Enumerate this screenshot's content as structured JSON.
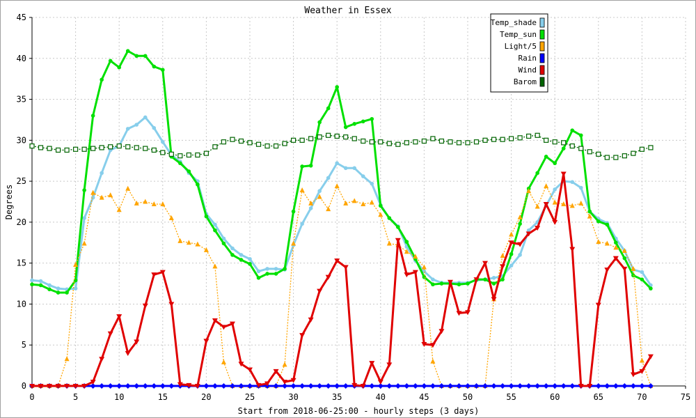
{
  "chart_data": {
    "type": "line",
    "title": "Weather in Essex",
    "xlabel": "Start from 2018-06-25:00 - hourly steps (3 days)",
    "ylabel": "Degrees",
    "xlim": [
      0,
      75
    ],
    "ylim": [
      0,
      45
    ],
    "x_ticks": [
      0,
      5,
      10,
      15,
      20,
      25,
      30,
      35,
      40,
      45,
      50,
      55,
      60,
      65,
      70,
      75
    ],
    "y_ticks": [
      0,
      5,
      10,
      15,
      20,
      25,
      30,
      35,
      40,
      45
    ],
    "grid": true,
    "legend_position": "top-right",
    "x": [
      0,
      1,
      2,
      3,
      4,
      5,
      6,
      7,
      8,
      9,
      10,
      11,
      12,
      13,
      14,
      15,
      16,
      17,
      18,
      19,
      20,
      21,
      22,
      23,
      24,
      25,
      26,
      27,
      28,
      29,
      30,
      31,
      32,
      33,
      34,
      35,
      36,
      37,
      38,
      39,
      40,
      41,
      42,
      43,
      44,
      45,
      46,
      47,
      48,
      49,
      50,
      51,
      52,
      53,
      54,
      55,
      56,
      57,
      58,
      59,
      60,
      61,
      62,
      63,
      64,
      65,
      66,
      67,
      68,
      69,
      70,
      71
    ],
    "series": [
      {
        "name": "Temp_shade",
        "color": "#87ceeb",
        "marker": "circle",
        "values": [
          12.9,
          12.8,
          12.3,
          11.9,
          11.8,
          11.9,
          20.5,
          23.0,
          26.0,
          28.8,
          29.3,
          31.4,
          31.9,
          32.8,
          31.5,
          29.8,
          28.2,
          27.4,
          26.0,
          25.0,
          21.0,
          19.7,
          18.0,
          16.8,
          16.0,
          15.5,
          14.0,
          14.3,
          14.3,
          14.2,
          17.2,
          19.8,
          21.7,
          23.8,
          25.4,
          27.2,
          26.6,
          26.6,
          25.6,
          24.7,
          22.1,
          20.5,
          19.5,
          17.0,
          15.3,
          14.0,
          13.0,
          12.6,
          12.6,
          12.6,
          12.6,
          12.9,
          13.0,
          13.2,
          13.4,
          14.7,
          16.0,
          19.0,
          20.0,
          22.0,
          24.0,
          25.0,
          24.9,
          24.2,
          21.3,
          20.4,
          19.9,
          18.0,
          16.5,
          14.2,
          13.9,
          12.3
        ]
      },
      {
        "name": "Temp_sun",
        "color": "#00e000",
        "marker": "circle",
        "values": [
          12.4,
          12.3,
          11.8,
          11.4,
          11.4,
          12.9,
          23.9,
          33.0,
          37.4,
          39.7,
          38.9,
          40.9,
          40.3,
          40.3,
          39.0,
          38.6,
          28.0,
          27.2,
          26.2,
          24.6,
          20.7,
          19.0,
          17.4,
          16.0,
          15.4,
          14.9,
          13.2,
          13.7,
          13.7,
          14.3,
          21.3,
          26.8,
          26.9,
          32.2,
          33.9,
          36.5,
          31.6,
          32.0,
          32.3,
          32.6,
          22.0,
          20.5,
          19.4,
          17.6,
          15.5,
          13.3,
          12.4,
          12.5,
          12.5,
          12.4,
          12.5,
          13.0,
          13.0,
          12.5,
          13.0,
          16.1,
          19.8,
          24.1,
          26.0,
          28.0,
          27.2,
          29.0,
          31.2,
          30.6,
          21.3,
          20.1,
          19.7,
          17.5,
          15.6,
          13.5,
          13.0,
          11.9
        ]
      },
      {
        "name": "Light/5",
        "color": "#ffa500",
        "marker": "triangle-up",
        "values": [
          0,
          0,
          0,
          0,
          3.3,
          14.8,
          17.4,
          23.6,
          23.0,
          23.3,
          21.5,
          24.1,
          22.3,
          22.5,
          22.2,
          22.2,
          20.5,
          17.7,
          17.5,
          17.3,
          16.6,
          14.6,
          2.9,
          0,
          0,
          0,
          0,
          0,
          0,
          2.6,
          17.4,
          23.9,
          22.3,
          23.1,
          21.6,
          24.4,
          22.3,
          22.6,
          22.2,
          22.4,
          20.9,
          17.4,
          17.2,
          16.4,
          15.8,
          14.5,
          3.0,
          0,
          0,
          0,
          0,
          0,
          0,
          10.6,
          15.9,
          18.5,
          20.6,
          23.8,
          21.9,
          24.4,
          22.4,
          22.2,
          22.0,
          22.3,
          20.7,
          17.6,
          17.4,
          16.9,
          16.5,
          14.3,
          3.1,
          0
        ]
      },
      {
        "name": "Rain",
        "color": "#0000ff",
        "marker": "diamond",
        "values": [
          0,
          0,
          0,
          0,
          0,
          0,
          0,
          0,
          0,
          0,
          0,
          0,
          0,
          0,
          0,
          0,
          0,
          0,
          0,
          0,
          0,
          0,
          0,
          0,
          0,
          0,
          0,
          0,
          0,
          0,
          0,
          0,
          0,
          0,
          0,
          0,
          0,
          0,
          0,
          0,
          0,
          0,
          0,
          0,
          0,
          0,
          0,
          0,
          0,
          0,
          0,
          0,
          0,
          0,
          0,
          0,
          0,
          0,
          0,
          0,
          0,
          0,
          0,
          0,
          0,
          0,
          0,
          0,
          0,
          0,
          0,
          0
        ]
      },
      {
        "name": "Wind",
        "color": "#e00000",
        "marker": "triangle-down",
        "values": [
          0,
          0,
          0,
          0,
          0,
          0,
          0,
          0.5,
          3.3,
          6.4,
          8.5,
          4.0,
          5.4,
          9.8,
          13.6,
          13.9,
          10.0,
          0.2,
          0.1,
          0,
          5.5,
          8.0,
          7.2,
          7.6,
          2.7,
          2.0,
          0.1,
          0.3,
          1.8,
          0.5,
          0.7,
          6.2,
          8.1,
          11.6,
          13.3,
          15.3,
          14.5,
          0.1,
          0,
          2.8,
          0.5,
          2.6,
          17.8,
          13.6,
          13.9,
          5.1,
          5.0,
          6.7,
          12.7,
          8.9,
          9.0,
          13.0,
          15.0,
          10.6,
          14.6,
          17.5,
          17.3,
          18.6,
          19.3,
          22.2,
          20.0,
          25.9,
          16.7,
          0,
          0,
          9.9,
          14.2,
          15.6,
          14.3,
          1.4,
          1.8,
          3.6
        ]
      },
      {
        "name": "Barom",
        "color": "#006400",
        "marker": "square",
        "values": [
          29.3,
          29.1,
          29.0,
          28.8,
          28.8,
          28.9,
          28.9,
          29.0,
          29.1,
          29.2,
          29.3,
          29.2,
          29.1,
          29.0,
          28.8,
          28.5,
          28.3,
          28.1,
          28.2,
          28.2,
          28.4,
          29.2,
          29.8,
          30.1,
          29.9,
          29.7,
          29.5,
          29.3,
          29.3,
          29.6,
          30.0,
          30.0,
          30.2,
          30.4,
          30.6,
          30.5,
          30.4,
          30.2,
          29.9,
          29.8,
          29.8,
          29.6,
          29.5,
          29.7,
          29.8,
          29.9,
          30.2,
          29.9,
          29.8,
          29.7,
          29.7,
          29.8,
          30.0,
          30.1,
          30.1,
          30.2,
          30.3,
          30.5,
          30.6,
          30.0,
          29.8,
          29.7,
          29.3,
          29.0,
          28.6,
          28.3,
          27.9,
          27.9,
          28.1,
          28.4,
          28.9,
          29.1
        ]
      }
    ]
  }
}
